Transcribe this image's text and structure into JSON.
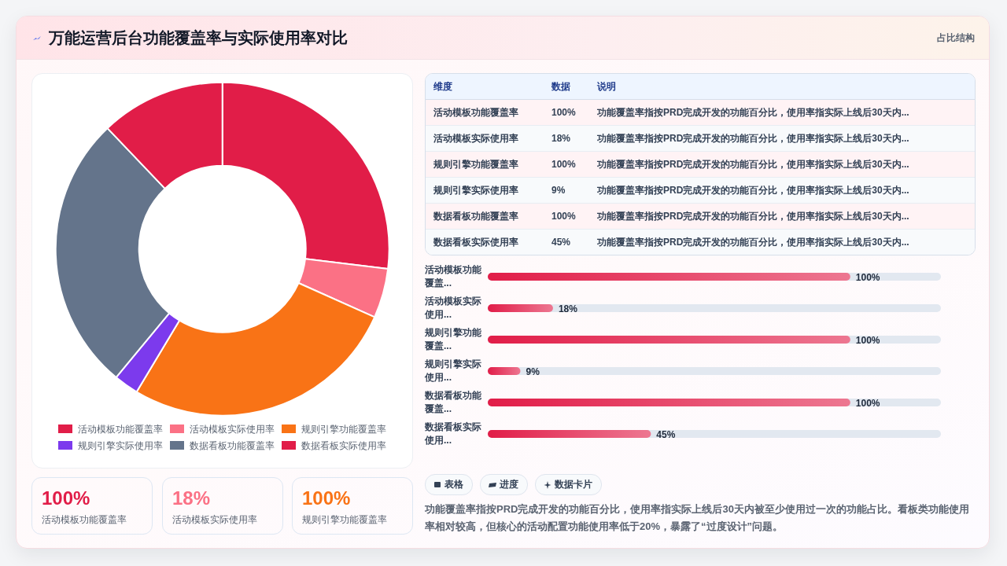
{
  "chart_data": [
    {
      "type": "other",
      "title": "万能运营后台功能覆盖率与实际使用率对比",
      "subtitle": "占比结构"
    },
    {
      "type": "donut",
      "categories": [
        "活动模板功能覆盖率",
        "活动模板实际使用率",
        "规则引擎功能覆盖率",
        "规则引擎实际使用率",
        "数据看板功能覆盖率",
        "数据看板实际使用率"
      ],
      "values": [
        26.9,
        4.8,
        26.9,
        2.4,
        26.9,
        12.1
      ],
      "colors": [
        "#e11d48",
        "#fb7185",
        "#f97316",
        "#7c3aed",
        "#64748b",
        "#e11d48"
      ],
      "legend": "bottom"
    },
    {
      "type": "other",
      "annotations": [
        "维度",
        "数据",
        "说明",
        "功能覆盖率指按PRD完成开发的功能百分比，使用率指实际上线后30天内...",
        "功能覆盖率指按PRD完成开发的功能百分比，使用率指实际上线后30天内...",
        "功能覆盖率指按PRD完成开发的功能百分比，使用率指实际上线后30天内...",
        "功能覆盖率指按PRD完成开发的功能百分比，使用率指实际上线后30天内...",
        "功能覆盖率指按PRD完成开发的功能百分比，使用率指实际上线后30天内...",
        "功能覆盖率指按PRD完成开发的功能百分比，使用率指实际上线后30天内..."
      ],
      "categories": [
        "活动模板功能覆盖率",
        "活动模板实际使用率",
        "规则引擎功能覆盖率",
        "规则引擎实际使用率",
        "数据看板功能覆盖率",
        "数据看板实际使用率"
      ],
      "value_labels": [
        "100%",
        "18%",
        "100%",
        "9%",
        "100%",
        "45%"
      ]
    },
    {
      "type": "bar",
      "orientation": "horizontal",
      "categories": [
        "活动模板功能覆盖...",
        "活动模板实际使用...",
        "规则引擎功能覆盖...",
        "规则引擎实际使用...",
        "数据看板功能覆盖...",
        "数据看板实际使用..."
      ],
      "values": [
        100,
        18,
        100,
        9,
        100,
        45
      ],
      "value_labels": [
        "100%",
        "18%",
        "100%",
        "9%",
        "100%",
        "45%"
      ],
      "color": "#e11d48",
      "tick_labels": "y"
    },
    {
      "type": "other",
      "categories": [
        "活动模板功能覆盖率",
        "活动模板实际使用率",
        "规则引擎功能覆盖率"
      ],
      "value_labels": [
        "100%",
        "18%",
        "100%"
      ],
      "colors": [
        "#e11d48",
        "#fb7185",
        "#f97316"
      ]
    },
    {
      "type": "other",
      "categories": [
        "表格",
        "进度",
        "数据卡片"
      ],
      "annotations": [
        "功能覆盖率指按PRD完成开发的功能百分比，使用率指实际上线后30天内被至少使用过一次的功能占比。看板类功能使用率相对较高，但核心的活动配置功能使用率低于20%，暴露了“过度设计”问题。"
      ]
    }
  ]
}
